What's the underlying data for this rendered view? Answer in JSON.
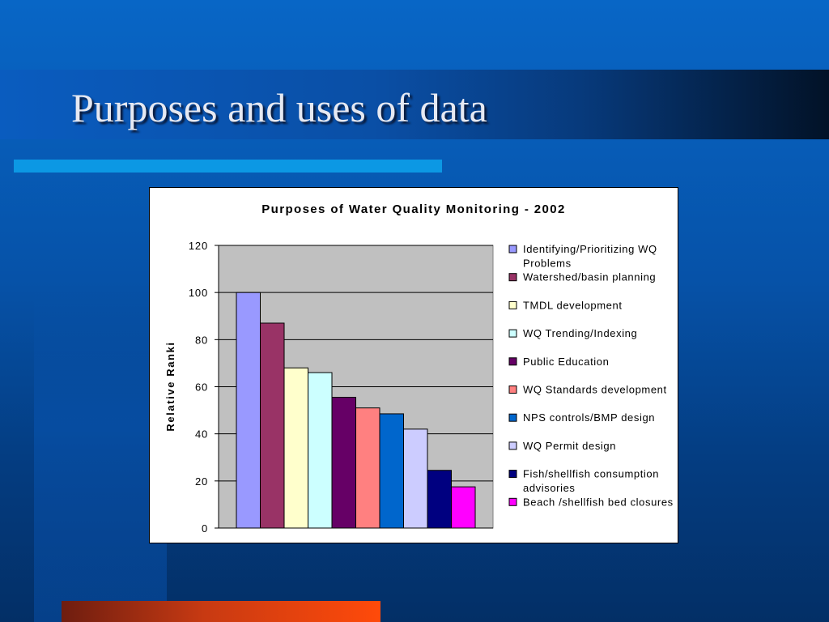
{
  "slide": {
    "title": "Purposes and uses of data"
  },
  "chart_data": {
    "type": "bar",
    "title": "Purposes of Water Quality Monitoring - 2002",
    "ylabel": "Relative Ranki",
    "xlabel": "",
    "ylim": [
      0,
      120
    ],
    "yticks": [
      0,
      20,
      40,
      60,
      80,
      100,
      120
    ],
    "grid": true,
    "legend_position": "right",
    "series": [
      {
        "name": "Identifying/Prioritizing WQ Problems",
        "value": 100,
        "color": "#9999ff"
      },
      {
        "name": "Watershed/basin planning",
        "value": 87,
        "color": "#993366"
      },
      {
        "name": "TMDL development",
        "value": 68,
        "color": "#ffffcc"
      },
      {
        "name": "WQ Trending/Indexing",
        "value": 66,
        "color": "#ccffff"
      },
      {
        "name": "Public Education",
        "value": 55.5,
        "color": "#660066"
      },
      {
        "name": "WQ Standards development",
        "value": 51,
        "color": "#ff8080"
      },
      {
        "name": "NPS controls/BMP design",
        "value": 48.5,
        "color": "#0066cc"
      },
      {
        "name": "WQ Permit design",
        "value": 42,
        "color": "#ccccff"
      },
      {
        "name": "Fish/shellfish consumption advisories",
        "value": 24.5,
        "color": "#000080"
      },
      {
        "name": "Beach /shellfish bed closures",
        "value": 17.5,
        "color": "#ff00ff"
      }
    ]
  }
}
